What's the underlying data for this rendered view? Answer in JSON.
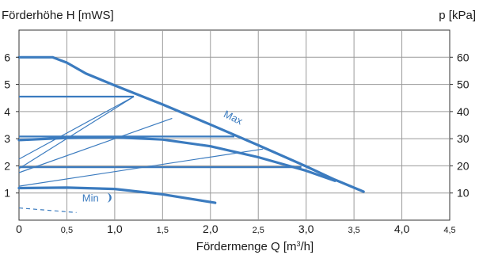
{
  "chart_data": {
    "type": "line",
    "title_left": "Förderhöhe H [mWS]",
    "title_right": "p [kPa]",
    "xlabel": "Fördermenge Q [m³/h]",
    "x_ticks": [
      {
        "value": 0,
        "label": "0",
        "major": true
      },
      {
        "value": 0.5,
        "label": "0,5",
        "major": false
      },
      {
        "value": 1.0,
        "label": "1,0",
        "major": true
      },
      {
        "value": 1.5,
        "label": "1,5",
        "major": false
      },
      {
        "value": 2.0,
        "label": "2,0",
        "major": true
      },
      {
        "value": 2.5,
        "label": "2,5",
        "major": false
      },
      {
        "value": 3.0,
        "label": "3,0",
        "major": true
      },
      {
        "value": 3.5,
        "label": "3,5",
        "major": false
      },
      {
        "value": 4.0,
        "label": "4,0",
        "major": true
      },
      {
        "value": 4.5,
        "label": "4,5",
        "major": false
      }
    ],
    "y_left_ticks": [
      {
        "value": 1,
        "label": "1"
      },
      {
        "value": 2,
        "label": "2"
      },
      {
        "value": 3,
        "label": "3"
      },
      {
        "value": 4,
        "label": "4"
      },
      {
        "value": 5,
        "label": "5"
      },
      {
        "value": 6,
        "label": "6"
      }
    ],
    "y_right_ticks": [
      {
        "value": 1,
        "label": "10"
      },
      {
        "value": 2,
        "label": "20"
      },
      {
        "value": 3,
        "label": "30"
      },
      {
        "value": 4,
        "label": "40"
      },
      {
        "value": 5,
        "label": "50"
      },
      {
        "value": 6,
        "label": "60"
      }
    ],
    "xlim": [
      0,
      4.5
    ],
    "ylim": [
      0,
      7
    ],
    "grid": true,
    "curve_color": "#3b7bbf",
    "curves": [
      {
        "name": "Max",
        "width": 3.2,
        "points": [
          [
            0,
            6.0
          ],
          [
            0.35,
            6.0
          ],
          [
            0.5,
            5.8
          ],
          [
            0.7,
            5.4
          ],
          [
            1.0,
            4.96
          ],
          [
            1.5,
            4.26
          ],
          [
            2.0,
            3.52
          ],
          [
            2.5,
            2.76
          ],
          [
            3.0,
            1.98
          ],
          [
            3.3,
            1.49
          ],
          [
            3.6,
            1.05
          ]
        ]
      },
      {
        "name": "",
        "width": 3.2,
        "points": [
          [
            0,
            2.95
          ],
          [
            0.5,
            3.03
          ],
          [
            1.0,
            3.05
          ],
          [
            1.5,
            2.97
          ],
          [
            2.0,
            2.72
          ],
          [
            2.5,
            2.32
          ],
          [
            3.0,
            1.82
          ],
          [
            3.3,
            1.45
          ]
        ]
      },
      {
        "name": "Min",
        "width": 3.2,
        "points": [
          [
            0,
            1.18
          ],
          [
            0.5,
            1.2
          ],
          [
            1.0,
            1.15
          ],
          [
            1.5,
            0.95
          ],
          [
            2.05,
            0.64
          ]
        ]
      }
    ],
    "horizontal_lines": [
      {
        "y": 4.55,
        "x0": 0,
        "x1": 1.2,
        "width": 2.2
      },
      {
        "y": 3.08,
        "x0": 0,
        "x1": 2.25,
        "width": 2.2
      },
      {
        "y": 1.95,
        "x0": 0,
        "x1": 2.95,
        "width": 2.2
      }
    ],
    "diagonal_lines": [
      {
        "x0": 0,
        "y0": 2.25,
        "x1": 1.2,
        "y1": 4.55
      },
      {
        "x0": 0,
        "y0": 1.9,
        "x1": 1.2,
        "y1": 4.55
      },
      {
        "x0": 0,
        "y0": 1.75,
        "x1": 1.6,
        "y1": 3.75
      },
      {
        "x0": 0,
        "y0": 1.25,
        "x1": 2.55,
        "y1": 2.62
      }
    ],
    "dashed_lines": [
      {
        "x0": 0,
        "y0": 0.45,
        "x1": 0.6,
        "y1": 0.28
      }
    ],
    "annotations": [
      {
        "id": "max",
        "text": "Max",
        "x": 2.13,
        "y": 3.82,
        "rotate": 26
      },
      {
        "id": "min",
        "text": "Min",
        "x": 0.66,
        "y": 0.68,
        "rotate": 0,
        "moon": true
      }
    ]
  }
}
